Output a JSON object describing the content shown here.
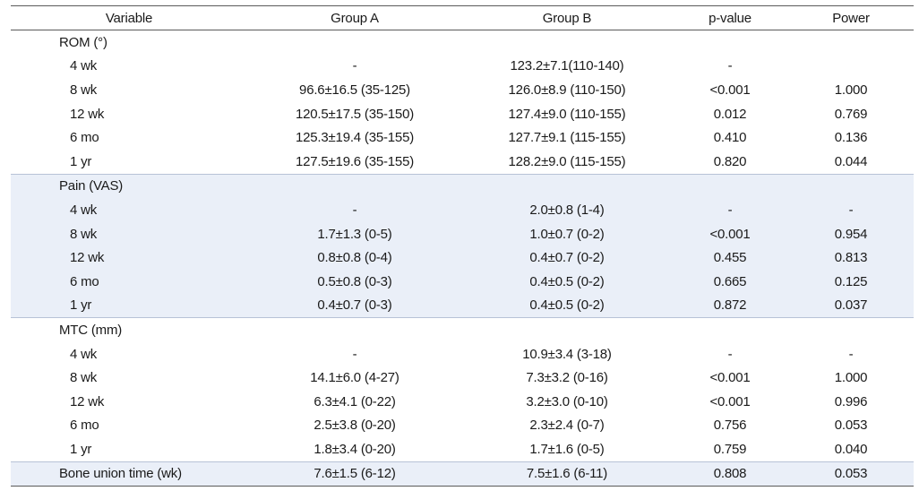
{
  "headers": {
    "variable": "Variable",
    "group_a": "Group A",
    "group_b": "Group B",
    "p_value": "p-value",
    "power": "Power"
  },
  "sections": [
    {
      "title": "ROM (°)",
      "rows": [
        {
          "label": "4 wk",
          "a": "-",
          "b": "123.2±7.1(110-140)",
          "p": "-",
          "power": ""
        },
        {
          "label": "8 wk",
          "a": "96.6±16.5 (35-125)",
          "b": "126.0±8.9 (110-150)",
          "p": "<0.001",
          "power": "1.000"
        },
        {
          "label": "12 wk",
          "a": "120.5±17.5 (35-150)",
          "b": "127.4±9.0 (110-155)",
          "p": "0.012",
          "power": "0.769"
        },
        {
          "label": "6 mo",
          "a": "125.3±19.4 (35-155)",
          "b": "127.7±9.1 (115-155)",
          "p": "0.410",
          "power": "0.136"
        },
        {
          "label": "1 yr",
          "a": "127.5±19.6 (35-155)",
          "b": "128.2±9.0 (115-155)",
          "p": "0.820",
          "power": "0.044"
        }
      ]
    },
    {
      "title": "Pain (VAS)",
      "rows": [
        {
          "label": "4 wk",
          "a": "-",
          "b": "2.0±0.8 (1-4)",
          "p": "-",
          "power": "-"
        },
        {
          "label": "8 wk",
          "a": "1.7±1.3 (0-5)",
          "b": "1.0±0.7 (0-2)",
          "p": "<0.001",
          "power": "0.954"
        },
        {
          "label": "12 wk",
          "a": "0.8±0.8 (0-4)",
          "b": "0.4±0.7 (0-2)",
          "p": "0.455",
          "power": "0.813"
        },
        {
          "label": "6 mo",
          "a": "0.5±0.8 (0-3)",
          "b": "0.4±0.5 (0-2)",
          "p": "0.665",
          "power": "0.125"
        },
        {
          "label": "1 yr",
          "a": "0.4±0.7 (0-3)",
          "b": "0.4±0.5 (0-2)",
          "p": "0.872",
          "power": "0.037"
        }
      ]
    },
    {
      "title": "MTC (mm)",
      "rows": [
        {
          "label": "4 wk",
          "a": "-",
          "b": "10.9±3.4 (3-18)",
          "p": "-",
          "power": "-"
        },
        {
          "label": "8 wk",
          "a": "14.1±6.0 (4-27)",
          "b": "7.3±3.2 (0-16)",
          "p": "<0.001",
          "power": "1.000"
        },
        {
          "label": "12 wk",
          "a": "6.3±4.1 (0-22)",
          "b": "3.2±3.0 (0-10)",
          "p": "<0.001",
          "power": "0.996"
        },
        {
          "label": "6 mo",
          "a": "2.5±3.8 (0-20)",
          "b": "2.3±2.4 (0-7)",
          "p": "0.756",
          "power": "0.053"
        },
        {
          "label": "1 yr",
          "a": "1.8±3.4 (0-20)",
          "b": "1.7±1.6 (0-5)",
          "p": "0.759",
          "power": "0.040"
        }
      ]
    }
  ],
  "bone_union": {
    "label": "Bone union time (wk)",
    "a": "7.6±1.5 (6-12)",
    "b": "7.5±1.6 (6-11)",
    "p": "0.808",
    "power": "0.053"
  }
}
